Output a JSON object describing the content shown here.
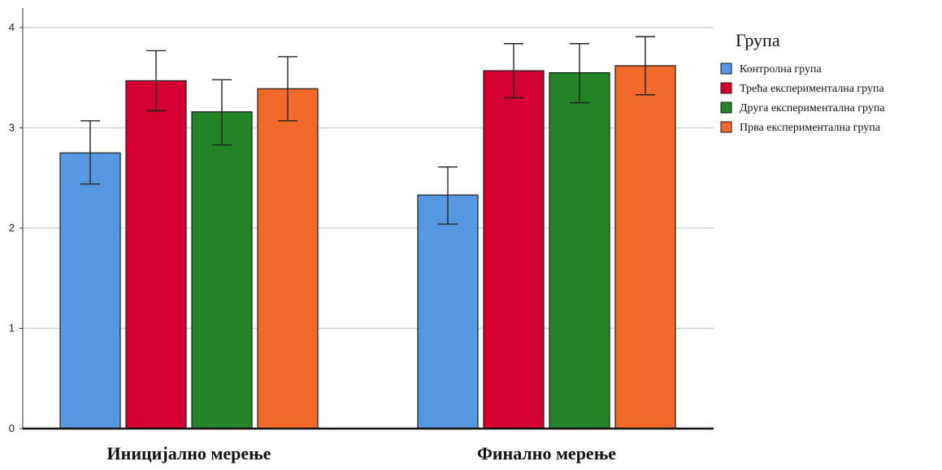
{
  "chart_data": {
    "type": "bar",
    "categories": [
      "Иницијално мерење",
      "Финално мерење"
    ],
    "series": [
      {
        "name": "Контролна група",
        "color": "#5796e0",
        "values": [
          2.75,
          2.33
        ],
        "err_low": [
          2.44,
          2.04
        ],
        "err_high": [
          3.07,
          2.61
        ]
      },
      {
        "name": "Трећа експериментална група",
        "color": "#d5002f",
        "values": [
          3.47,
          3.57
        ],
        "err_low": [
          3.17,
          3.3
        ],
        "err_high": [
          3.77,
          3.84
        ]
      },
      {
        "name": "Друга експериментална група",
        "color": "#228327",
        "values": [
          3.16,
          3.55
        ],
        "err_low": [
          2.83,
          3.25
        ],
        "err_high": [
          3.48,
          3.84
        ]
      },
      {
        "name": "Прва експериментална група",
        "color": "#f26a2a",
        "values": [
          3.39,
          3.62
        ],
        "err_low": [
          3.07,
          3.33
        ],
        "err_high": [
          3.71,
          3.91
        ]
      }
    ],
    "yticks": [
      "0",
      "1",
      "2",
      "3",
      "4"
    ],
    "ylim": [
      0,
      4
    ],
    "legend_title": "Група",
    "legend_position": "right",
    "grid": true,
    "xlabel": "",
    "ylabel": ""
  }
}
